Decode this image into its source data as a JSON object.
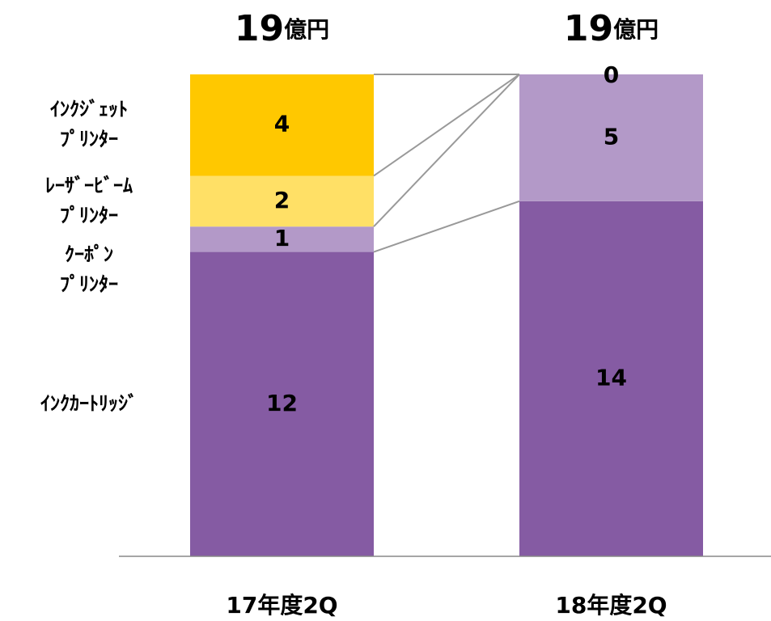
{
  "chart_data": {
    "type": "stacked_bar",
    "categories": [
      "17年度2Q",
      "18年度2Q"
    ],
    "totals": [
      19,
      19
    ],
    "total_unit": "億円",
    "series": [
      {
        "name": "ｲﾝｸｶｰﾄﾘｯｼﾞ",
        "color": "#855ba3",
        "values": [
          12,
          14
        ]
      },
      {
        "name": "ｸｰﾎﾟﾝ\nﾌﾟﾘﾝﾀｰ",
        "color": "#b399c8",
        "values": [
          1,
          5
        ]
      },
      {
        "name": "ﾚｰｻﾞｰﾋﾞｰﾑ\nﾌﾟﾘﾝﾀｰ",
        "color": "#ffe066",
        "values": [
          2,
          0
        ],
        "value_labels": [
          "2",
          null
        ]
      },
      {
        "name": "ｲﾝｸｼﾞｪｯﾄ\nﾌﾟﾘﾝﾀｰ",
        "color": "#ffc800",
        "values": [
          4,
          0
        ]
      }
    ],
    "ylim": [
      0,
      19
    ]
  }
}
